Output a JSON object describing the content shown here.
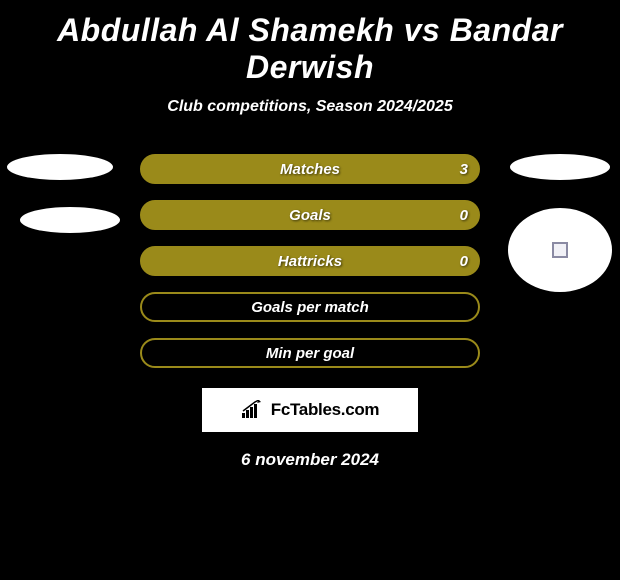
{
  "header": {
    "title": "Abdullah Al Shamekh vs Bandar Derwish",
    "subtitle": "Club competitions, Season 2024/2025"
  },
  "colors": {
    "background": "#000000",
    "bar_fill": "#9a8a1a",
    "bar_border": "#9a8a1a",
    "bar_empty_border": "#9a8a1a",
    "text": "#ffffff"
  },
  "bars": [
    {
      "label": "Matches",
      "value_right": "3",
      "fill_pct": 100,
      "show_value": true
    },
    {
      "label": "Goals",
      "value_right": "0",
      "fill_pct": 100,
      "show_value": true
    },
    {
      "label": "Hattricks",
      "value_right": "0",
      "fill_pct": 100,
      "show_value": true
    },
    {
      "label": "Goals per match",
      "value_right": "",
      "fill_pct": 0,
      "show_value": false
    },
    {
      "label": "Min per goal",
      "value_right": "",
      "fill_pct": 0,
      "show_value": false
    }
  ],
  "brand": {
    "text": "FcTables.com"
  },
  "date": "6 november 2024"
}
